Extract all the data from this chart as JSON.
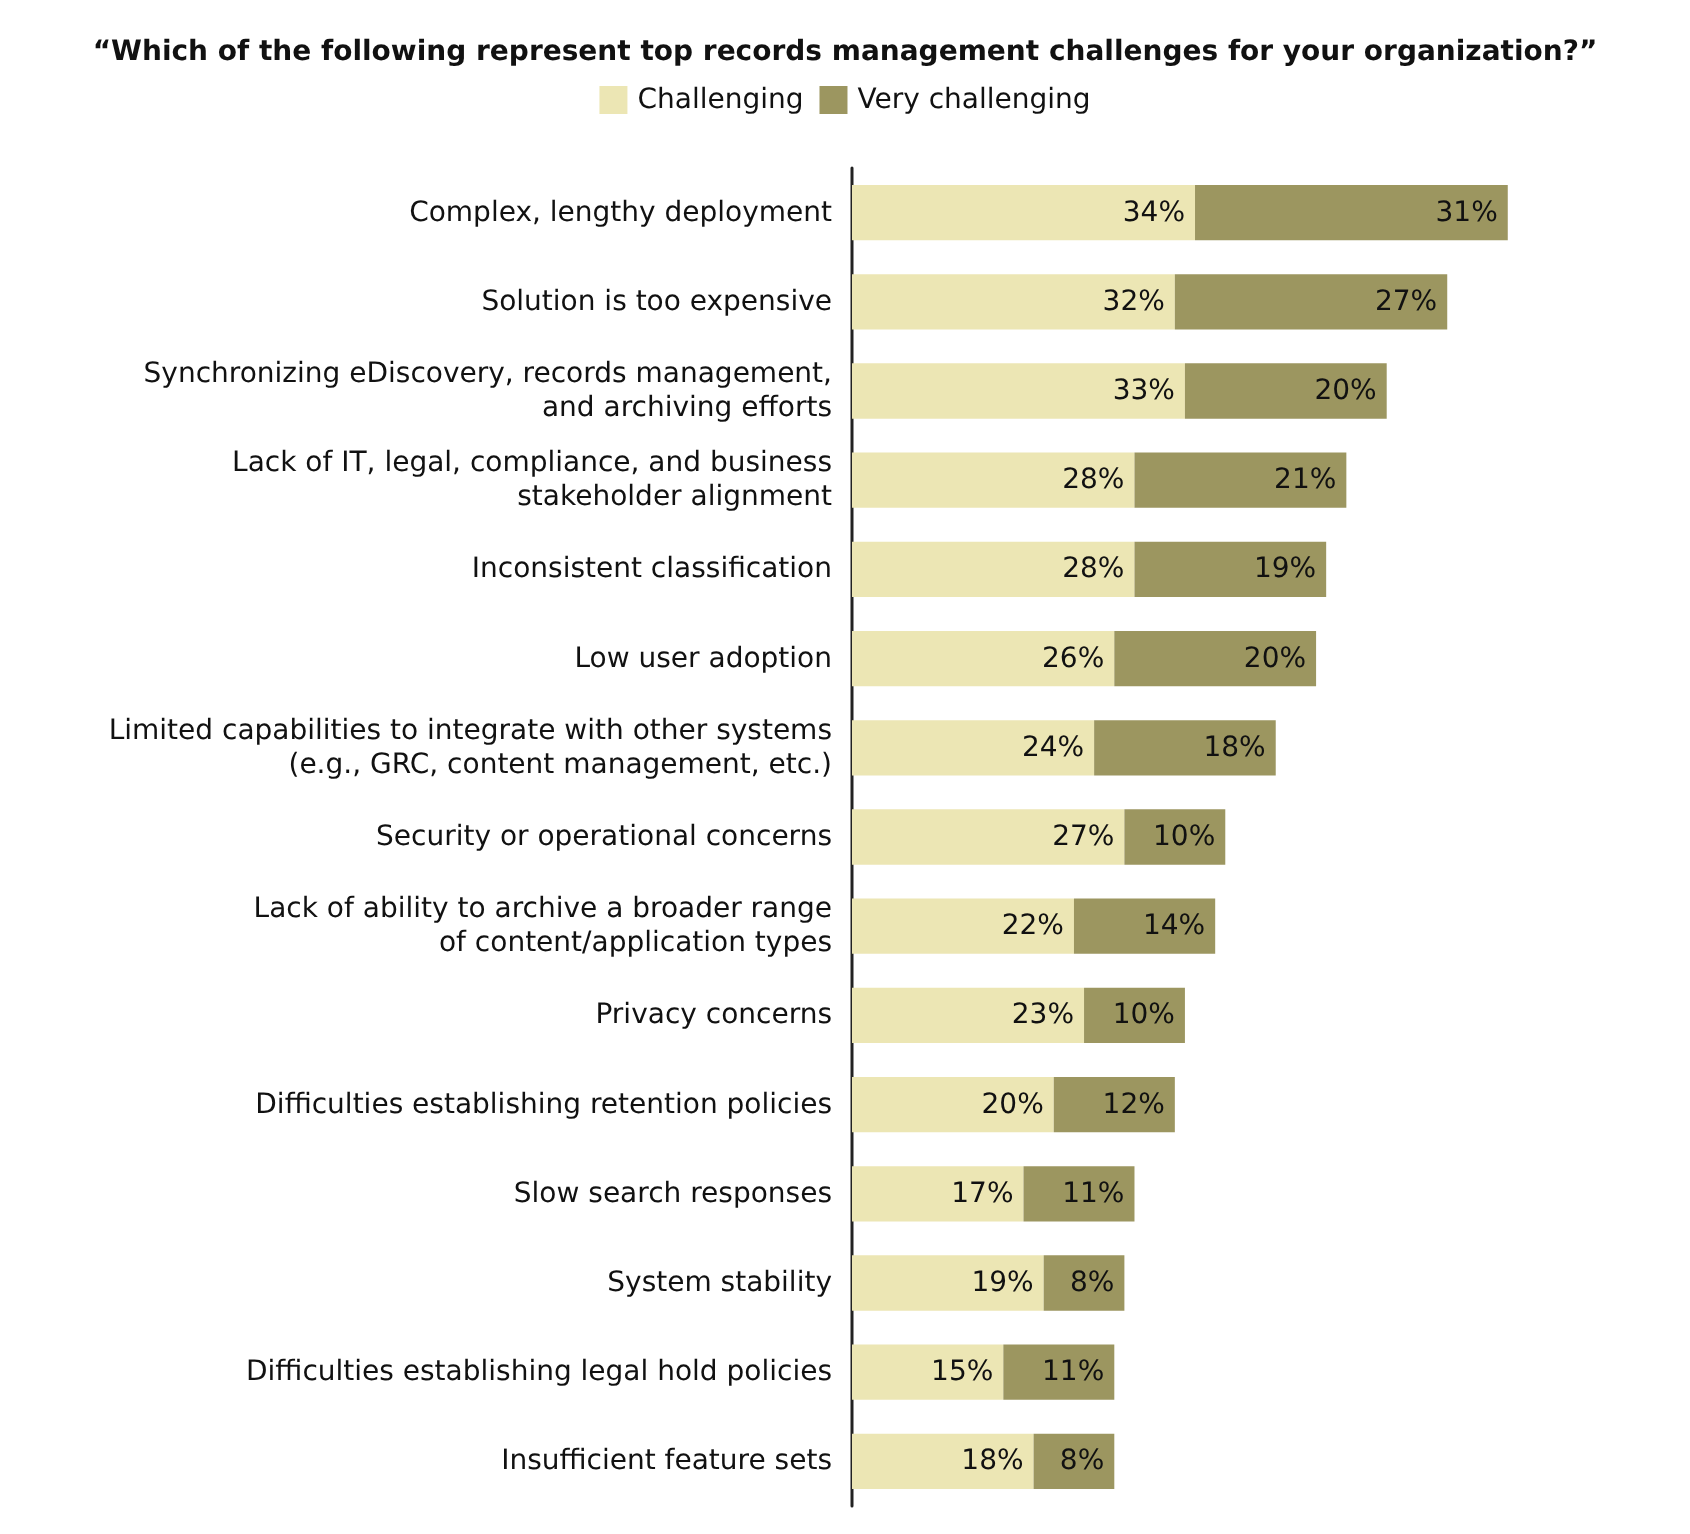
{
  "chart_data": {
    "type": "bar",
    "orientation": "horizontal",
    "stacked": true,
    "title": "“Which of the following represent top records management challenges for your organization?”",
    "legend": "top",
    "categories": [
      "Complex, lengthy deployment",
      "Solution is too expensive",
      "Synchronizing eDiscovery, records management,\nand archiving efforts",
      "Lack of IT, legal, compliance, and business\nstakeholder alignment",
      "Inconsistent classification",
      "Low user adoption",
      "Limited capabilities to integrate with other systems\n(e.g., GRC, content management, etc.)",
      "Security or operational concerns",
      "Lack of ability to archive a broader range\nof content/application types",
      "Privacy concerns",
      "Difficulties establishing retention policies",
      "Slow search responses",
      "System stability",
      "Difficulties establishing legal hold policies",
      "Insufficient feature sets"
    ],
    "series": [
      {
        "name": "Challenging",
        "color": "#ece6b4",
        "values": [
          34,
          32,
          33,
          28,
          28,
          26,
          24,
          27,
          22,
          23,
          20,
          17,
          19,
          15,
          18
        ],
        "value_labels": [
          "34%",
          "32%",
          "33%",
          "28%",
          "28%",
          "26%",
          "24%",
          "27%",
          "22%",
          "23%",
          "20%",
          "17%",
          "19%",
          "15%",
          "18%"
        ]
      },
      {
        "name": "Very challenging",
        "color": "#9c9660",
        "values": [
          31,
          27,
          20,
          21,
          19,
          20,
          18,
          10,
          14,
          10,
          12,
          11,
          8,
          11,
          8
        ],
        "value_labels": [
          "31%",
          "27%",
          "20%",
          "21%",
          "19%",
          "20%",
          "18%",
          "10%",
          "14%",
          "10%",
          "12%",
          "11%",
          "8%",
          "11%",
          "8%"
        ]
      }
    ]
  }
}
